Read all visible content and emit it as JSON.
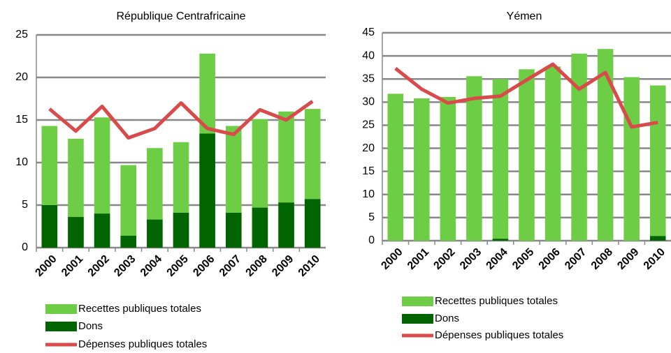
{
  "chart_data": [
    {
      "type": "bar",
      "title": "République Centrafricaine",
      "categories": [
        "2000",
        "2001",
        "2002",
        "2003",
        "2004",
        "2005",
        "2006",
        "2007",
        "2008",
        "2009",
        "2010"
      ],
      "ylim": [
        0,
        25
      ],
      "yticks": [
        0,
        5,
        10,
        15,
        20,
        25
      ],
      "grid": true,
      "series": [
        {
          "name": "Recettes publiques totales",
          "type": "bar",
          "color": "#6dcd45",
          "values": [
            14.3,
            12.8,
            15.3,
            9.7,
            11.7,
            12.4,
            22.8,
            14.3,
            15.1,
            16.0,
            16.3
          ]
        },
        {
          "name": "Dons",
          "type": "bar",
          "color": "#006400",
          "values": [
            5.0,
            3.6,
            4.0,
            1.4,
            3.3,
            4.1,
            13.4,
            4.1,
            4.7,
            5.3,
            5.7
          ]
        },
        {
          "name": "Dépenses publiques totales",
          "type": "line",
          "color": "#d94b4b",
          "values": [
            16.3,
            13.7,
            16.6,
            12.9,
            14.0,
            17.0,
            14.0,
            13.3,
            16.2,
            15.0,
            17.2
          ]
        }
      ]
    },
    {
      "type": "bar",
      "title": "Yémen",
      "categories": [
        "2000",
        "2001",
        "2002",
        "2003",
        "2004",
        "2005",
        "2006",
        "2007",
        "2008",
        "2009",
        "2010"
      ],
      "ylim": [
        0,
        45
      ],
      "yticks": [
        0,
        5,
        10,
        15,
        20,
        25,
        30,
        35,
        40,
        45
      ],
      "grid": true,
      "series": [
        {
          "name": "Recettes publiques totales",
          "type": "bar",
          "color": "#6dcd45",
          "values": [
            31.8,
            30.8,
            31.1,
            35.6,
            35.0,
            37.1,
            37.7,
            40.5,
            41.5,
            35.4,
            33.6
          ]
        },
        {
          "name": "Dons",
          "type": "bar",
          "color": "#006400",
          "values": [
            0,
            0,
            0,
            0,
            0.4,
            0,
            0,
            0,
            0,
            0,
            1.0
          ]
        },
        {
          "name": "Dépenses publiques totales",
          "type": "line",
          "color": "#d94b4b",
          "values": [
            37.3,
            32.8,
            29.8,
            30.8,
            31.3,
            34.8,
            38.2,
            32.8,
            36.4,
            24.6,
            25.6
          ]
        }
      ]
    }
  ]
}
